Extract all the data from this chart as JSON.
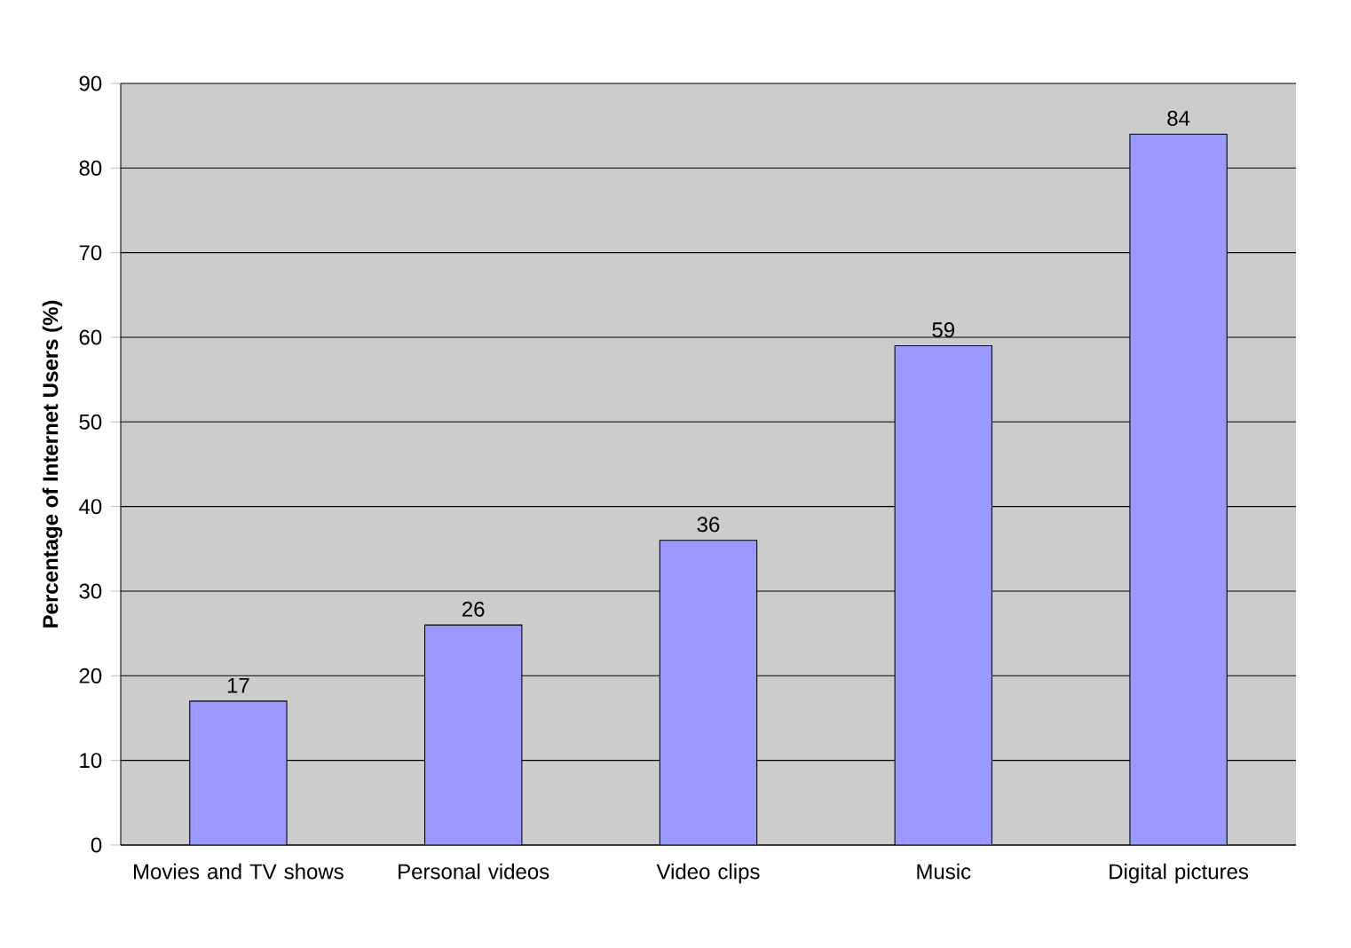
{
  "chart_data": {
    "type": "bar",
    "ylabel": "Percentage of Internet Users (%)",
    "categories": [
      "Movies and TV shows",
      "Personal videos",
      "Video clips",
      "Music",
      "Digital pictures"
    ],
    "values": [
      17,
      26,
      36,
      59,
      84
    ],
    "color": "#9999ff",
    "ylim": [
      0,
      90
    ],
    "yticks": [
      0,
      10,
      20,
      30,
      40,
      50,
      60,
      70,
      80,
      90
    ],
    "grid": "y",
    "data_labels": true
  }
}
